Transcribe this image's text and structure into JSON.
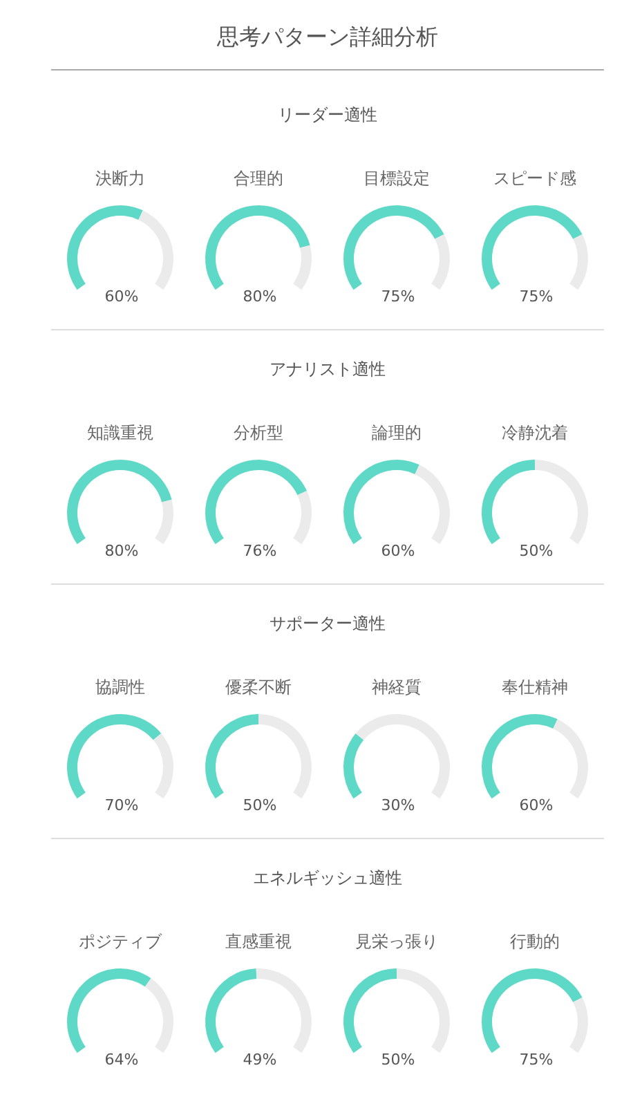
{
  "chart_data": [
    {
      "type": "other",
      "title": "思考パターン詳細分析"
    },
    {
      "type": "other",
      "title": "リーダー適性"
    },
    {
      "type": "donut",
      "title": "決断力",
      "categories": [
        null,
        null
      ],
      "values": [
        60,
        40
      ],
      "colors": [
        "#5fd9c7",
        "#ebebeb"
      ],
      "annotations": [
        "60%"
      ]
    },
    {
      "type": "donut",
      "title": "合理的",
      "categories": [
        null,
        null
      ],
      "values": [
        80,
        20
      ],
      "colors": [
        "#5fd9c7",
        "#ebebeb"
      ],
      "annotations": [
        "80%"
      ]
    },
    {
      "type": "donut",
      "title": "目標設定",
      "categories": [
        null,
        null
      ],
      "values": [
        75,
        25
      ],
      "colors": [
        "#5fd9c7",
        "#ebebeb"
      ],
      "annotations": [
        "75%"
      ]
    },
    {
      "type": "donut",
      "title": "スピード感",
      "categories": [
        null,
        null
      ],
      "values": [
        75,
        25
      ],
      "colors": [
        "#5fd9c7",
        "#ebebeb"
      ],
      "annotations": [
        "75%"
      ]
    },
    {
      "type": "other",
      "title": "アナリスト適性"
    },
    {
      "type": "donut",
      "title": "知識重視",
      "categories": [
        null,
        null
      ],
      "values": [
        80,
        20
      ],
      "colors": [
        "#5fd9c7",
        "#ebebeb"
      ],
      "annotations": [
        "80%"
      ]
    },
    {
      "type": "donut",
      "title": "分析型",
      "categories": [
        null,
        null
      ],
      "values": [
        76,
        24
      ],
      "colors": [
        "#5fd9c7",
        "#ebebeb"
      ],
      "annotations": [
        "76%"
      ]
    },
    {
      "type": "donut",
      "title": "論理的",
      "categories": [
        null,
        null
      ],
      "values": [
        60,
        40
      ],
      "colors": [
        "#5fd9c7",
        "#ebebeb"
      ],
      "annotations": [
        "60%"
      ]
    },
    {
      "type": "donut",
      "title": "冷静沈着",
      "categories": [
        null,
        null
      ],
      "values": [
        50,
        50
      ],
      "colors": [
        "#5fd9c7",
        "#ebebeb"
      ],
      "annotations": [
        "50%"
      ]
    },
    {
      "type": "other",
      "title": "サポーター適性"
    },
    {
      "type": "donut",
      "title": "協調性",
      "categories": [
        null,
        null
      ],
      "values": [
        70,
        30
      ],
      "colors": [
        "#5fd9c7",
        "#ebebeb"
      ],
      "annotations": [
        "70%"
      ]
    },
    {
      "type": "donut",
      "title": "優柔不断",
      "categories": [
        null,
        null
      ],
      "values": [
        50,
        50
      ],
      "colors": [
        "#5fd9c7",
        "#ebebeb"
      ],
      "annotations": [
        "50%"
      ]
    },
    {
      "type": "donut",
      "title": "神経質",
      "categories": [
        null,
        null
      ],
      "values": [
        30,
        70
      ],
      "colors": [
        "#5fd9c7",
        "#ebebeb"
      ],
      "annotations": [
        "30%"
      ]
    },
    {
      "type": "donut",
      "title": "奉仕精神",
      "categories": [
        null,
        null
      ],
      "values": [
        60,
        40
      ],
      "colors": [
        "#5fd9c7",
        "#ebebeb"
      ],
      "annotations": [
        "60%"
      ]
    },
    {
      "type": "other",
      "title": "エネルギッシュ適性"
    },
    {
      "type": "donut",
      "title": "ポジティブ",
      "categories": [
        null,
        null
      ],
      "values": [
        64,
        36
      ],
      "colors": [
        "#5fd9c7",
        "#ebebeb"
      ],
      "annotations": [
        "64%"
      ]
    },
    {
      "type": "donut",
      "title": "直感重視",
      "categories": [
        null,
        null
      ],
      "values": [
        49,
        51
      ],
      "colors": [
        "#5fd9c7",
        "#ebebeb"
      ],
      "annotations": [
        "49%"
      ]
    },
    {
      "type": "donut",
      "title": "見栄っ張り",
      "categories": [
        null,
        null
      ],
      "values": [
        50,
        50
      ],
      "colors": [
        "#5fd9c7",
        "#ebebeb"
      ],
      "annotations": [
        "50%"
      ]
    },
    {
      "type": "donut",
      "title": "行動的",
      "categories": [
        null,
        null
      ],
      "values": [
        75,
        25
      ],
      "colors": [
        "#5fd9c7",
        "#ebebeb"
      ],
      "annotations": [
        "75%"
      ]
    }
  ]
}
